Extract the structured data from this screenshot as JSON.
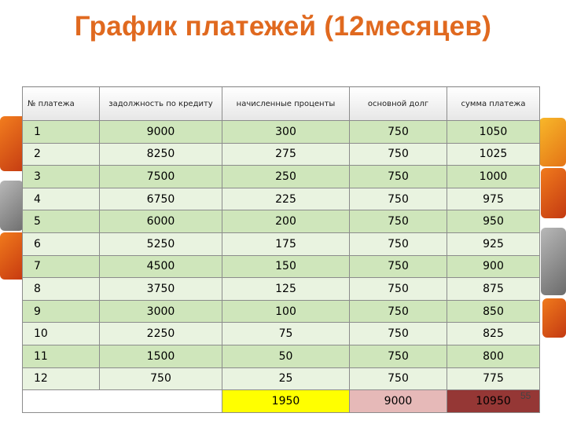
{
  "title": "График платежей (12месяцев)",
  "table": {
    "headers": {
      "num": "№ платежа",
      "debt": "задолжность по кредиту",
      "interest": "начисленные проценты",
      "principal": "основной долг",
      "payment": "сумма платежа"
    },
    "rows": [
      {
        "num": "1",
        "debt": "9000",
        "interest": "300",
        "principal": "750",
        "payment": "1050"
      },
      {
        "num": "2",
        "debt": "8250",
        "interest": "275",
        "principal": "750",
        "payment": "1025"
      },
      {
        "num": "3",
        "debt": "7500",
        "interest": "250",
        "principal": "750",
        "payment": "1000"
      },
      {
        "num": "4",
        "debt": "6750",
        "interest": "225",
        "principal": "750",
        "payment": "975"
      },
      {
        "num": "5",
        "debt": "6000",
        "interest": "200",
        "principal": "750",
        "payment": "950"
      },
      {
        "num": "6",
        "debt": "5250",
        "interest": "175",
        "principal": "750",
        "payment": "925"
      },
      {
        "num": "7",
        "debt": "4500",
        "interest": "150",
        "principal": "750",
        "payment": "900"
      },
      {
        "num": "8",
        "debt": "3750",
        "interest": "125",
        "principal": "750",
        "payment": "875"
      },
      {
        "num": "9",
        "debt": "3000",
        "interest": "100",
        "principal": "750",
        "payment": "850"
      },
      {
        "num": "10",
        "debt": "2250",
        "interest": "75",
        "principal": "750",
        "payment": "825"
      },
      {
        "num": "11",
        "debt": "1500",
        "interest": "50",
        "principal": "750",
        "payment": "800"
      },
      {
        "num": "12",
        "debt": "750",
        "interest": "25",
        "principal": "750",
        "payment": "775"
      }
    ],
    "totals": {
      "interest": "1950",
      "principal": "9000",
      "payment": "10950"
    }
  },
  "slide_number": "55",
  "colors": {
    "title": "#e0691f",
    "row_dark": "#cfe6bb",
    "row_light": "#e9f3e0",
    "total_interest": "#ffff00",
    "total_principal": "#e6b9b8",
    "total_payment": "#953735"
  }
}
